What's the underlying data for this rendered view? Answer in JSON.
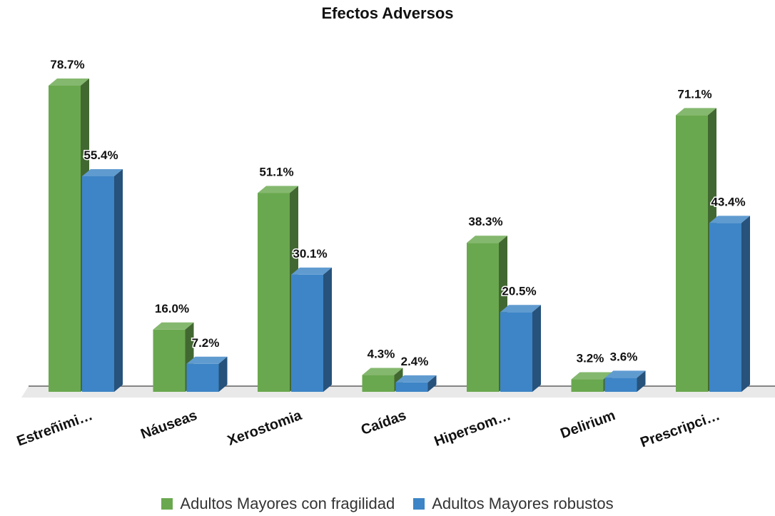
{
  "chart_data": {
    "type": "bar",
    "title": "Efectos Adversos",
    "xlabel": "",
    "ylabel": "",
    "ylim": [
      0,
      80
    ],
    "grid": false,
    "legend_position": "bottom",
    "categories": [
      "Estreñimi…",
      "Náuseas",
      "Xerostomia",
      "Caídas",
      "Hipersom…",
      "Delirium",
      "Prescripci…"
    ],
    "series": [
      {
        "name": "Adultos Mayores con fragilidad",
        "color": "#6aa84f",
        "values": [
          78.7,
          16.0,
          51.1,
          4.3,
          38.3,
          3.2,
          71.1
        ],
        "labels": [
          "78.7%",
          "16.0%",
          "51.1%",
          "4.3%",
          "38.3%",
          "3.2%",
          "71.1%"
        ]
      },
      {
        "name": "Adultos Mayores robustos",
        "color": "#3d85c6",
        "values": [
          55.4,
          7.2,
          30.1,
          2.4,
          20.5,
          3.6,
          43.4
        ],
        "labels": [
          "55.4%",
          "7.2%",
          "30.1%",
          "2.4%",
          "20.5%",
          "3.6%",
          "43.4%"
        ]
      }
    ]
  }
}
